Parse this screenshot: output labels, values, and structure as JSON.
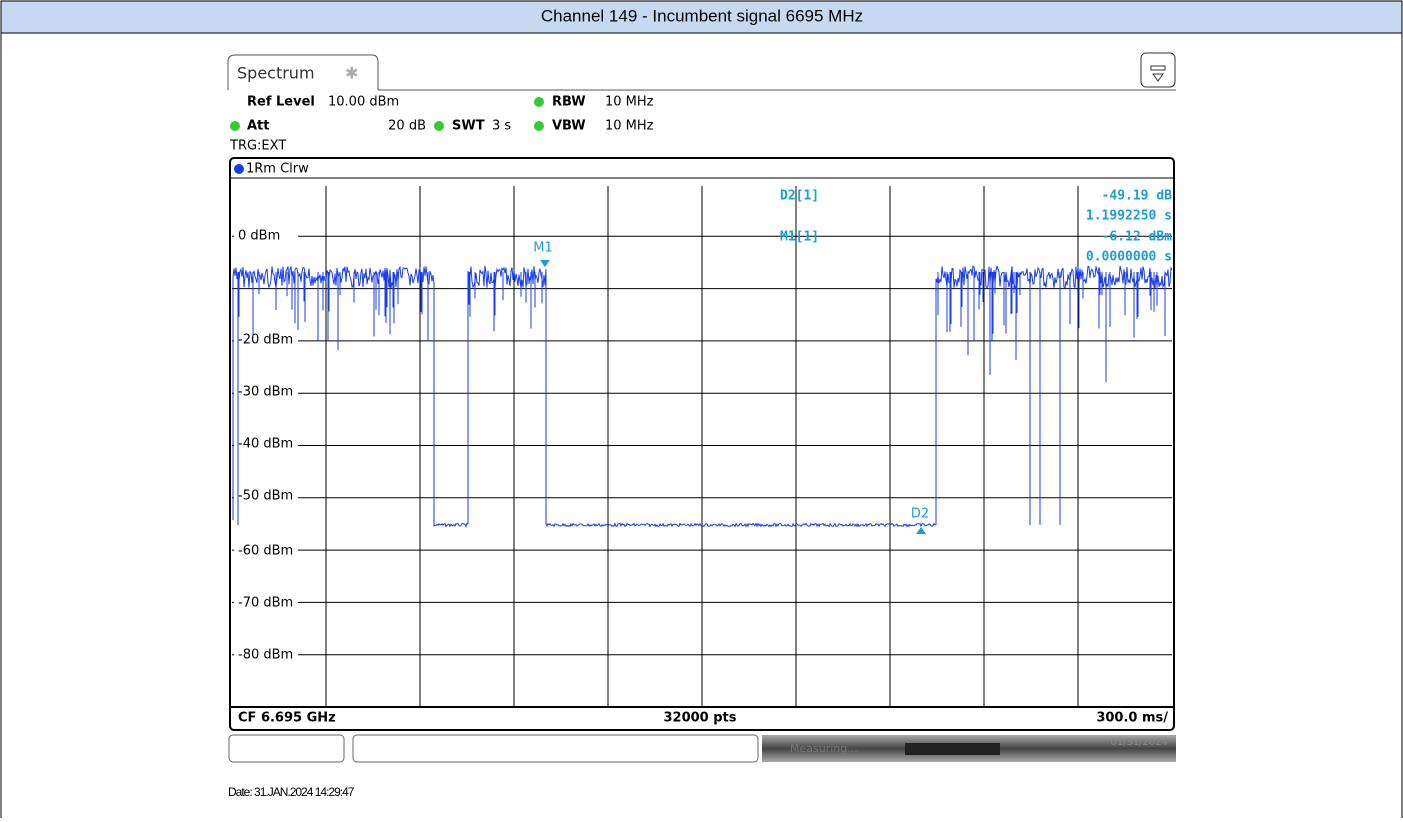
{
  "header": {
    "title": "Channel 149 - Incumbent signal 6695 MHz"
  },
  "instrument": {
    "tab": "Spectrum",
    "settings": {
      "ref_level_label": "Ref Level",
      "ref_level": "10.00 dBm",
      "rbw_label": "RBW",
      "rbw": "10 MHz",
      "att_label": "Att",
      "att": "20 dB",
      "swt_label": "SWT",
      "swt": "3 s",
      "vbw_label": "VBW",
      "vbw": "10 MHz",
      "trigger": "TRG:EXT"
    },
    "trace_label": "1Rm Clrw",
    "y_labels": [
      "0 dBm",
      "-20 dBm",
      "-30 dBm",
      "-40 dBm",
      "-50 dBm",
      "-60 dBm",
      "-70 dBm",
      "-80 dBm"
    ],
    "markers": {
      "m1": "M1",
      "d2": "D2"
    },
    "readouts": [
      {
        "name": "D2[1]",
        "value": "-49.19 dB",
        "time": "1.1992250 s"
      },
      {
        "name": "M1[1]",
        "value": "-6.12 dBm",
        "time": "0.0000000 s"
      }
    ],
    "footer": {
      "center_freq": "CF 6.695 GHz",
      "points": "32000 pts",
      "span": "300.0 ms/"
    },
    "status": {
      "measuring": "Measuring...",
      "date": "01/31/2024"
    }
  },
  "date": "Date: 31.JAN.2024 14:29:47"
}
